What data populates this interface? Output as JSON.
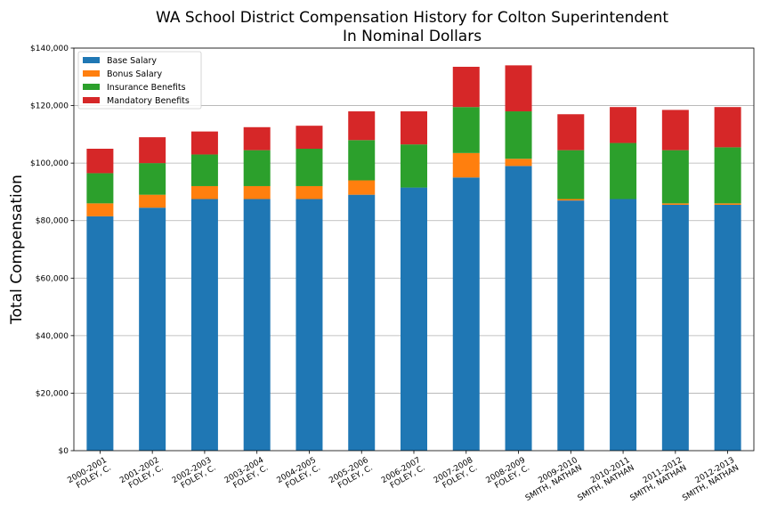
{
  "chart_data": {
    "type": "bar",
    "stacked": true,
    "title_line1": "WA School District Compensation History for Colton Superintendent",
    "title_line2": "In Nominal Dollars",
    "xlabel": "",
    "ylabel": "Total Compensation",
    "ylim": [
      0,
      140000
    ],
    "yticks": [
      {
        "value": 0,
        "label": "$0"
      },
      {
        "value": 20000,
        "label": "$20,000"
      },
      {
        "value": 40000,
        "label": "$40,000"
      },
      {
        "value": 60000,
        "label": "$60,000"
      },
      {
        "value": 80000,
        "label": "$80,000"
      },
      {
        "value": 100000,
        "label": "$100,000"
      },
      {
        "value": 120000,
        "label": "$120,000"
      },
      {
        "value": 140000,
        "label": "$140,000"
      }
    ],
    "grid": "horizontal",
    "legend_position": "top-left",
    "categories": [
      {
        "year": "2000-2001",
        "name": "FOLEY, C."
      },
      {
        "year": "2001-2002",
        "name": "FOLEY, C."
      },
      {
        "year": "2002-2003",
        "name": "FOLEY, C."
      },
      {
        "year": "2003-2004",
        "name": "FOLEY, C."
      },
      {
        "year": "2004-2005",
        "name": "FOLEY, C."
      },
      {
        "year": "2005-2006",
        "name": "FOLEY, C."
      },
      {
        "year": "2006-2007",
        "name": "FOLEY, C."
      },
      {
        "year": "2007-2008",
        "name": "FOLEY, C."
      },
      {
        "year": "2008-2009",
        "name": "FOLEY, C."
      },
      {
        "year": "2009-2010",
        "name": "SMITH, NATHAN"
      },
      {
        "year": "2010-2011",
        "name": "SMITH, NATHAN"
      },
      {
        "year": "2011-2012",
        "name": "SMITH, NATHAN"
      },
      {
        "year": "2012-2013",
        "name": "SMITH, NATHAN"
      }
    ],
    "series": [
      {
        "name": "Base Salary",
        "color": "#1f77b4",
        "values": [
          81500,
          84500,
          87500,
          87500,
          87500,
          89000,
          91500,
          95000,
          99000,
          87000,
          87500,
          85500,
          85500
        ]
      },
      {
        "name": "Bonus Salary",
        "color": "#ff7f0e",
        "values": [
          4500,
          4500,
          4500,
          4500,
          4500,
          5000,
          0,
          8500,
          2500,
          500,
          0,
          500,
          500
        ]
      },
      {
        "name": "Insurance Benefits",
        "color": "#2ca02c",
        "values": [
          10500,
          11000,
          11000,
          12500,
          13000,
          14000,
          15000,
          16000,
          16500,
          17000,
          19500,
          18500,
          19500
        ]
      },
      {
        "name": "Mandatory Benefits",
        "color": "#d62728",
        "values": [
          8500,
          9000,
          8000,
          8000,
          8000,
          10000,
          11500,
          14000,
          16000,
          12500,
          12500,
          14000,
          14000
        ]
      }
    ]
  }
}
